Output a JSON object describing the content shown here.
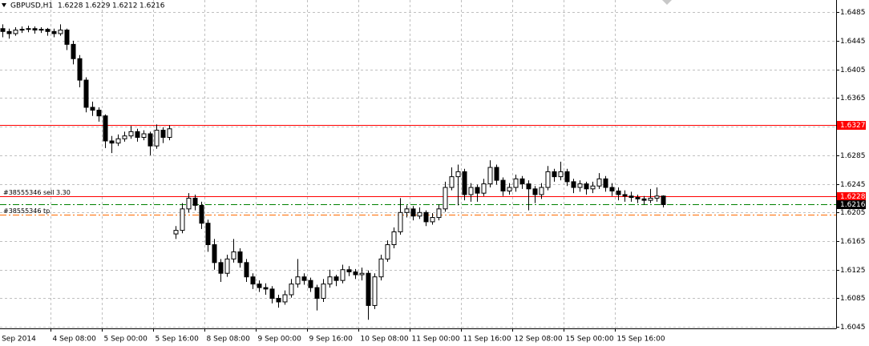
{
  "chart_data": {
    "type": "candlestick",
    "symbol": "GBPUSD,H1",
    "ylim": [
      1.6043,
      1.6502
    ],
    "yticks": [
      1.6485,
      1.6445,
      1.6405,
      1.6365,
      1.6325,
      1.6285,
      1.6245,
      1.6205,
      1.6165,
      1.6125,
      1.6085,
      1.6045
    ],
    "grid": true,
    "xticks": [
      "4 Sep 2014",
      "4 Sep 08:00",
      "5 Sep 00:00",
      "5 Sep 16:00",
      "8 Sep 08:00",
      "9 Sep 00:00",
      "9 Sep 16:00",
      "10 Sep 08:00",
      "11 Sep 00:00",
      "11 Sep 16:00",
      "12 Sep 08:00",
      "15 Sep 00:00",
      "15 Sep 16:00"
    ],
    "hlines": [
      {
        "value": 1.6327,
        "color": "#ff0000",
        "style": "solid",
        "box": "#ff0000"
      },
      {
        "name": "#38555346 sell 3.30",
        "value": 1.6228,
        "color": "#ff0000",
        "style": "solid",
        "box": "#ff0000"
      },
      {
        "value": 1.6216,
        "color": "#008000",
        "style": "dashdot",
        "box": "#000000"
      },
      {
        "name": "#38555346 tp",
        "value": 1.6202,
        "color": "#ff6a00",
        "style": "dashdot"
      }
    ],
    "ohlc": [
      [
        1.6462,
        1.6468,
        1.645,
        1.6458
      ],
      [
        1.6458,
        1.6462,
        1.6448,
        1.6455
      ],
      [
        1.6455,
        1.6464,
        1.6452,
        1.646
      ],
      [
        1.646,
        1.6465,
        1.6456,
        1.6461
      ],
      [
        1.6461,
        1.6466,
        1.6457,
        1.6462
      ],
      [
        1.6462,
        1.6465,
        1.6455,
        1.646
      ],
      [
        1.646,
        1.6464,
        1.6456,
        1.6461
      ],
      [
        1.6461,
        1.6463,
        1.6452,
        1.6458
      ],
      [
        1.6458,
        1.6462,
        1.645,
        1.6455
      ],
      [
        1.6455,
        1.6468,
        1.6452,
        1.646
      ],
      [
        1.646,
        1.6462,
        1.6432,
        1.644
      ],
      [
        1.644,
        1.6445,
        1.6412,
        1.642
      ],
      [
        1.642,
        1.6425,
        1.638,
        1.639
      ],
      [
        1.639,
        1.6394,
        1.6345,
        1.6352
      ],
      [
        1.6352,
        1.636,
        1.634,
        1.6348
      ],
      [
        1.6348,
        1.6352,
        1.6332,
        1.634
      ],
      [
        1.634,
        1.6342,
        1.6295,
        1.6305
      ],
      [
        1.6305,
        1.6312,
        1.6288,
        1.6302
      ],
      [
        1.6302,
        1.6314,
        1.6298,
        1.6308
      ],
      [
        1.6308,
        1.6318,
        1.6304,
        1.6312
      ],
      [
        1.6312,
        1.6326,
        1.6308,
        1.6318
      ],
      [
        1.6318,
        1.6322,
        1.6304,
        1.631
      ],
      [
        1.631,
        1.632,
        1.6306,
        1.6315
      ],
      [
        1.6315,
        1.6318,
        1.6285,
        1.6298
      ],
      [
        1.6298,
        1.6328,
        1.6294,
        1.632
      ],
      [
        1.632,
        1.6324,
        1.6302,
        1.631
      ],
      [
        1.631,
        1.6327,
        1.6306,
        1.6322
      ],
      [
        1.6175,
        1.6186,
        1.6168,
        1.618
      ],
      [
        1.618,
        1.6218,
        1.6176,
        1.621
      ],
      [
        1.621,
        1.6232,
        1.6205,
        1.6225
      ],
      [
        1.6225,
        1.623,
        1.6208,
        1.6215
      ],
      [
        1.6215,
        1.622,
        1.6182,
        1.619
      ],
      [
        1.619,
        1.6195,
        1.615,
        1.616
      ],
      [
        1.616,
        1.6168,
        1.6125,
        1.6135
      ],
      [
        1.6135,
        1.614,
        1.6108,
        1.612
      ],
      [
        1.612,
        1.6146,
        1.6115,
        1.614
      ],
      [
        1.614,
        1.6168,
        1.6135,
        1.615
      ],
      [
        1.615,
        1.6155,
        1.6128,
        1.6135
      ],
      [
        1.6135,
        1.614,
        1.6108,
        1.6115
      ],
      [
        1.6115,
        1.612,
        1.6098,
        1.6105
      ],
      [
        1.6105,
        1.611,
        1.6094,
        1.61
      ],
      [
        1.61,
        1.6106,
        1.609,
        1.6098
      ],
      [
        1.6098,
        1.6102,
        1.6078,
        1.6085
      ],
      [
        1.6085,
        1.609,
        1.6072,
        1.608
      ],
      [
        1.608,
        1.6096,
        1.6076,
        1.609
      ],
      [
        1.609,
        1.6112,
        1.6086,
        1.6105
      ],
      [
        1.6105,
        1.614,
        1.61,
        1.6115
      ],
      [
        1.6115,
        1.612,
        1.6104,
        1.611
      ],
      [
        1.611,
        1.6114,
        1.6094,
        1.61
      ],
      [
        1.61,
        1.6104,
        1.6068,
        1.6085
      ],
      [
        1.6085,
        1.6112,
        1.608,
        1.6105
      ],
      [
        1.6105,
        1.6125,
        1.61,
        1.6115
      ],
      [
        1.6115,
        1.6118,
        1.6102,
        1.611
      ],
      [
        1.611,
        1.6132,
        1.6106,
        1.6125
      ],
      [
        1.6125,
        1.613,
        1.6116,
        1.6122
      ],
      [
        1.6122,
        1.6126,
        1.6112,
        1.6118
      ],
      [
        1.6118,
        1.6128,
        1.611,
        1.612
      ],
      [
        1.612,
        1.6124,
        1.6055,
        1.6075
      ],
      [
        1.6075,
        1.612,
        1.607,
        1.6115
      ],
      [
        1.6115,
        1.6146,
        1.611,
        1.614
      ],
      [
        1.614,
        1.6166,
        1.6136,
        1.616
      ],
      [
        1.616,
        1.6184,
        1.6155,
        1.6178
      ],
      [
        1.6178,
        1.6225,
        1.6174,
        1.6205
      ],
      [
        1.6205,
        1.6215,
        1.6198,
        1.621
      ],
      [
        1.621,
        1.6214,
        1.6194,
        1.62
      ],
      [
        1.62,
        1.6212,
        1.6196,
        1.6205
      ],
      [
        1.6205,
        1.6208,
        1.6186,
        1.6192
      ],
      [
        1.6192,
        1.6204,
        1.6188,
        1.6198
      ],
      [
        1.6198,
        1.6216,
        1.6194,
        1.621
      ],
      [
        1.621,
        1.6248,
        1.6206,
        1.624
      ],
      [
        1.624,
        1.6268,
        1.6236,
        1.6255
      ],
      [
        1.6255,
        1.6272,
        1.6215,
        1.6262
      ],
      [
        1.6262,
        1.6266,
        1.6222,
        1.623
      ],
      [
        1.623,
        1.6246,
        1.622,
        1.624
      ],
      [
        1.624,
        1.6244,
        1.622,
        1.6232
      ],
      [
        1.6232,
        1.6252,
        1.6228,
        1.6245
      ],
      [
        1.6245,
        1.6278,
        1.624,
        1.6268
      ],
      [
        1.6268,
        1.6272,
        1.6244,
        1.625
      ],
      [
        1.625,
        1.6254,
        1.6228,
        1.6235
      ],
      [
        1.6235,
        1.6246,
        1.623,
        1.624
      ],
      [
        1.624,
        1.6258,
        1.6234,
        1.6252
      ],
      [
        1.6252,
        1.6256,
        1.6238,
        1.6245
      ],
      [
        1.6245,
        1.625,
        1.6208,
        1.6238
      ],
      [
        1.6238,
        1.6242,
        1.6218,
        1.623
      ],
      [
        1.623,
        1.6246,
        1.6224,
        1.624
      ],
      [
        1.624,
        1.627,
        1.6236,
        1.6262
      ],
      [
        1.6262,
        1.6266,
        1.6248,
        1.6255
      ],
      [
        1.6255,
        1.6276,
        1.625,
        1.6262
      ],
      [
        1.6262,
        1.6266,
        1.6242,
        1.6248
      ],
      [
        1.6248,
        1.6252,
        1.6232,
        1.624
      ],
      [
        1.624,
        1.625,
        1.6234,
        1.6245
      ],
      [
        1.6245,
        1.6248,
        1.623,
        1.6238
      ],
      [
        1.6238,
        1.6248,
        1.6232,
        1.6242
      ],
      [
        1.6242,
        1.626,
        1.6238,
        1.6252
      ],
      [
        1.6252,
        1.6256,
        1.6234,
        1.624
      ],
      [
        1.624,
        1.6246,
        1.6228,
        1.6235
      ],
      [
        1.6235,
        1.624,
        1.6222,
        1.623
      ],
      [
        1.623,
        1.6236,
        1.622,
        1.6228
      ],
      [
        1.6228,
        1.6234,
        1.622,
        1.6226
      ],
      [
        1.6226,
        1.623,
        1.6218,
        1.6224
      ],
      [
        1.6224,
        1.6228,
        1.6216,
        1.6222
      ],
      [
        1.6222,
        1.6238,
        1.6218,
        1.6225
      ],
      [
        1.6225,
        1.624,
        1.622,
        1.6228
      ],
      [
        1.6228,
        1.6229,
        1.6212,
        1.6216
      ]
    ]
  }
}
